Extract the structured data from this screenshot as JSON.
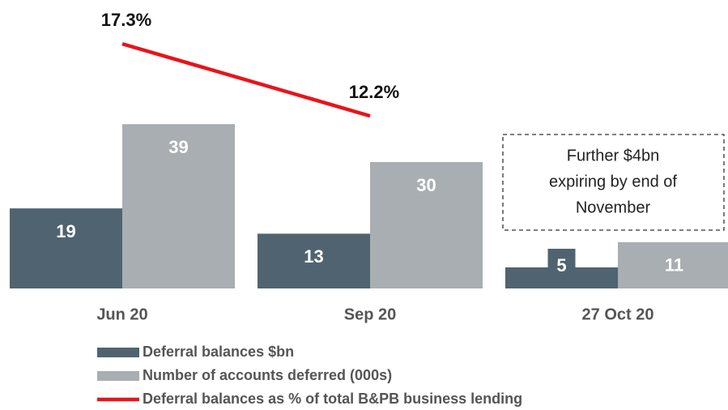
{
  "chart_data": {
    "type": "bar",
    "categories": [
      "Jun 20",
      "Sep 20",
      "27 Oct 20"
    ],
    "series": [
      {
        "name": "Deferral balances $bn",
        "color": "#4f6470",
        "type": "bar",
        "values": [
          19,
          13,
          5
        ]
      },
      {
        "name": "Number of accounts deferred (000s)",
        "color": "#a8aeb1",
        "type": "bar",
        "values": [
          39,
          30,
          11
        ]
      },
      {
        "name": "Deferral balances as % of total B&PB business lending",
        "color": "#e8141b",
        "type": "line",
        "axis": "y2",
        "values": [
          17.3,
          12.2,
          null
        ],
        "value_labels": [
          "17.3%",
          "12.2%",
          null
        ]
      }
    ],
    "ylim": [
      0,
      40
    ],
    "y2lim": [
      0,
      20
    ],
    "annotation": [
      "Further $4bn",
      "expiring by end of",
      "November"
    ]
  }
}
